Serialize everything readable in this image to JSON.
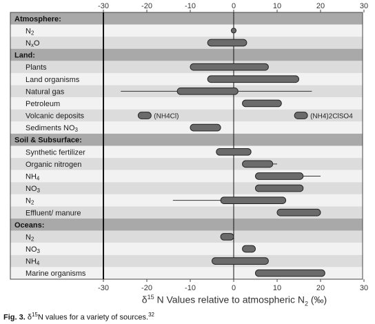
{
  "chart_data": {
    "type": "range",
    "xlim": [
      -30,
      30
    ],
    "ticks": [
      -30,
      -20,
      -10,
      0,
      10,
      20,
      30
    ],
    "tick_labels": [
      "-30",
      "-20",
      "-10",
      "0",
      "10",
      "20",
      "30"
    ],
    "xlabel_prefix": "δ",
    "xlabel_sup": "15",
    "xlabel_main": "N Values relative to atmospheric N",
    "xlabel_sub": "2",
    "xlabel_unit": "(‰)",
    "rows": [
      {
        "type": "category",
        "label": "Atmosphere:"
      },
      {
        "type": "item",
        "label": "N",
        "sub": "2",
        "point": 0
      },
      {
        "type": "item",
        "label": "N",
        "sub": "x",
        "label_after": "O",
        "box": [
          -6,
          3
        ]
      },
      {
        "type": "category",
        "label": "Land:"
      },
      {
        "type": "item",
        "label": "Plants",
        "box": [
          -10,
          8
        ]
      },
      {
        "type": "item",
        "label": "Land organisms",
        "box": [
          -6,
          15
        ]
      },
      {
        "type": "item",
        "label": "Natural gas",
        "box": [
          -13,
          1
        ],
        "whisker": [
          -26,
          18
        ]
      },
      {
        "type": "item",
        "label": "Petroleum",
        "box": [
          2,
          11
        ]
      },
      {
        "type": "item",
        "label": "Volcanic deposits",
        "boxes": [
          [
            -22,
            -19
          ],
          [
            14,
            17
          ]
        ],
        "notes": [
          {
            "x": -19,
            "text": "(NH4Cl)"
          },
          {
            "x": 17,
            "text": "(NH4)2ClSO4"
          }
        ]
      },
      {
        "type": "item",
        "label": "Sediments NO",
        "sub": "3",
        "box": [
          -10,
          -3
        ]
      },
      {
        "type": "category",
        "label": "Soil & Subsurface:"
      },
      {
        "type": "item",
        "label": "Synthetic fertilizer",
        "box": [
          -4,
          4
        ]
      },
      {
        "type": "item",
        "label": "Organic nitrogen",
        "box": [
          2,
          9
        ],
        "whisker": [
          2,
          10
        ]
      },
      {
        "type": "item",
        "label": "NH",
        "sub": "4",
        "box": [
          5,
          16
        ],
        "whisker": [
          5,
          20
        ]
      },
      {
        "type": "item",
        "label": "NO",
        "sub": "3",
        "box": [
          5,
          16
        ]
      },
      {
        "type": "item",
        "label": "N",
        "sub": "2",
        "box": [
          -3,
          12
        ],
        "whisker": [
          -14,
          12
        ]
      },
      {
        "type": "item",
        "label": "Effluent/ manure",
        "box": [
          10,
          20
        ]
      },
      {
        "type": "category",
        "label": "Oceans:"
      },
      {
        "type": "item",
        "label": "N",
        "sub": "2",
        "box": [
          -3,
          0
        ]
      },
      {
        "type": "item",
        "label": "NO",
        "sub": "3",
        "box": [
          2,
          5
        ]
      },
      {
        "type": "item",
        "label": "NH",
        "sub": "4",
        "box": [
          -5,
          8
        ]
      },
      {
        "type": "item",
        "label": "Marine organisms",
        "box": [
          5,
          21
        ]
      }
    ]
  },
  "caption": {
    "fig_label": "Fig. 3.",
    "delta": "δ",
    "sup": "15",
    "text": "N values for a variety of sources.",
    "ref": "32"
  }
}
